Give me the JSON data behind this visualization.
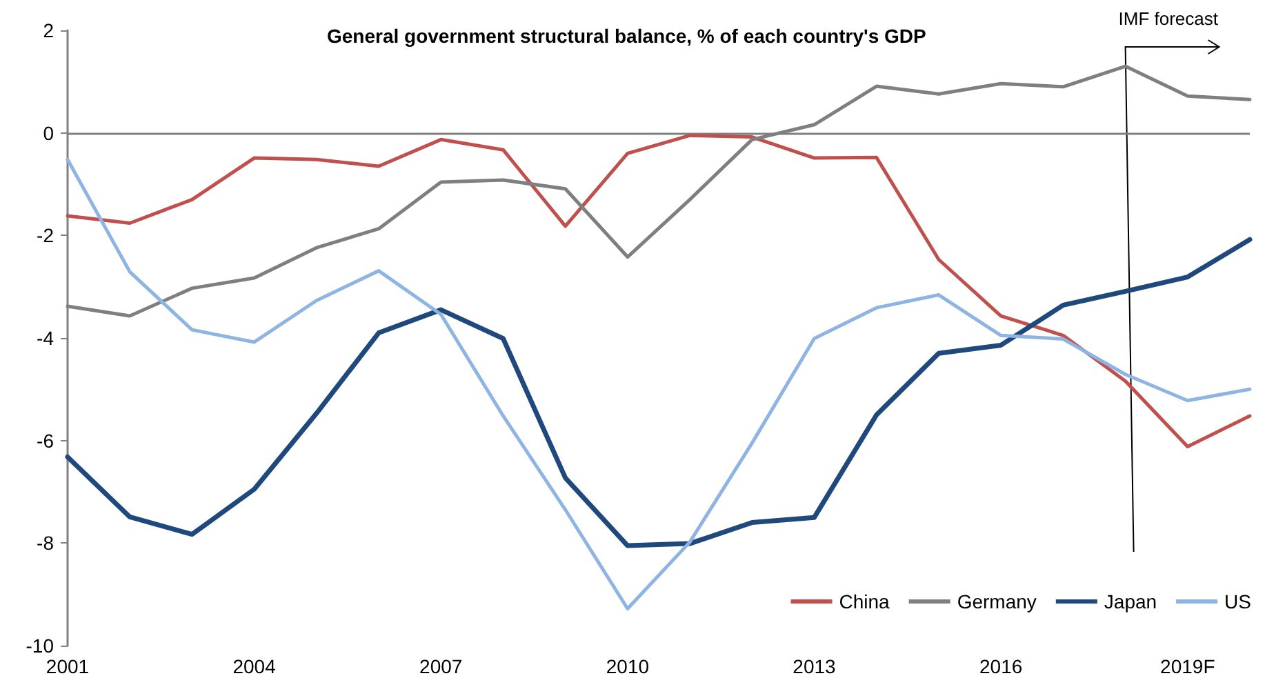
{
  "chart_data": {
    "type": "line",
    "title": "General government structural balance, % of each country's GDP",
    "categories": [
      "2001",
      null,
      null,
      "2004",
      null,
      null,
      "2007",
      null,
      null,
      "2010",
      null,
      null,
      "2013",
      null,
      null,
      "2016",
      null,
      null,
      "2019F",
      null
    ],
    "series": [
      {
        "name": "China",
        "color": "#c0504d",
        "values": [
          -1.62,
          -1.76,
          -1.3,
          -0.49,
          -0.52,
          -0.65,
          -0.13,
          -0.33,
          -1.82,
          -0.4,
          -0.05,
          -0.08,
          -0.49,
          -0.48,
          -2.47,
          -3.57,
          -3.95,
          -4.84,
          -6.12,
          -5.52
        ]
      },
      {
        "name": "Germany",
        "color": "#7f7f7f",
        "values": [
          -3.38,
          -3.57,
          -3.03,
          -2.83,
          -2.24,
          -1.87,
          -0.96,
          -0.92,
          -1.09,
          -2.42,
          -1.3,
          -0.13,
          0.16,
          0.91,
          0.76,
          0.96,
          0.9,
          1.3,
          0.72,
          0.65
        ]
      },
      {
        "name": "Japan",
        "color": "#1f497d",
        "values": [
          -6.32,
          -7.49,
          -7.83,
          -6.95,
          -5.47,
          -3.9,
          -3.45,
          -4.01,
          -6.73,
          -8.05,
          -8.01,
          -7.6,
          -7.5,
          -5.5,
          -4.3,
          -4.14,
          -3.36,
          -3.09,
          -2.81,
          -2.08
        ]
      },
      {
        "name": "US",
        "color": "#8eb4e3",
        "values": [
          -0.52,
          -2.71,
          -3.84,
          -4.08,
          -3.27,
          -2.69,
          -3.54,
          -5.52,
          -7.35,
          -9.28,
          -7.98,
          -6.05,
          -4.01,
          -3.41,
          -3.16,
          -3.95,
          -4.02,
          -4.71,
          -5.22,
          -5.0
        ]
      }
    ],
    "ylim": [
      -10,
      2
    ],
    "yticks": [
      -10,
      -8,
      -6,
      -4,
      -2,
      0,
      2
    ],
    "ref_lines": [
      {
        "axis": "y",
        "value": 0,
        "color": "#808080"
      }
    ],
    "annotations": [
      "IMF forecast"
    ],
    "grid": false,
    "legend": "bottom right",
    "marker": "none",
    "line_style": "solid"
  }
}
